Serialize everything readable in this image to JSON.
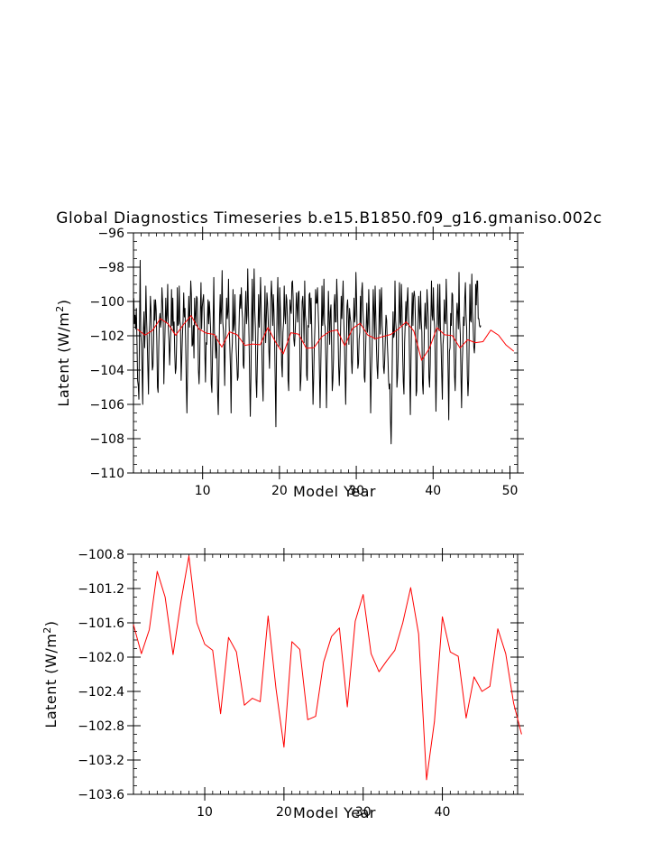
{
  "title": "Global Diagnostics Timeseries b.e15.B1850.f09_g16.gmaniso.002c",
  "colors": {
    "monthly_line": "#000000",
    "annual_line": "#ff0000"
  },
  "chart_data": [
    {
      "type": "line",
      "xlabel": "Model Year",
      "ylabel": "Latent (W/m²)",
      "ylabel_base": "Latent (W/m",
      "ylabel_sup": "2",
      "ylabel_close": ")",
      "xlim": [
        1,
        51
      ],
      "ylim": [
        -110,
        -96
      ],
      "x_ticks": [
        10,
        20,
        30,
        40,
        50
      ],
      "x_tick_labels": [
        "10",
        "20",
        "30",
        "40",
        "50"
      ],
      "y_ticks": [
        -96,
        -98,
        -100,
        -102,
        -104,
        -106,
        -108,
        -110
      ],
      "y_tick_labels": [
        "−96",
        "−98",
        "−100",
        "−102",
        "−104",
        "−106",
        "−108",
        "−110"
      ],
      "grid": false,
      "series": [
        {
          "color": "#000000",
          "x_start": 1.04,
          "x_step": 0.08333,
          "values": [
            -99.8,
            -101.3,
            -100.8,
            -101.6,
            -100.4,
            -102.3,
            -104.6,
            -104.9,
            -105.7,
            -101.5,
            -97.6,
            -101.9,
            -102.5,
            -104.1,
            -106.0,
            -101.6,
            -100.6,
            -102.7,
            -101.4,
            -99.1,
            -101.0,
            -102.2,
            -103.9,
            -105.4,
            -102.1,
            -101.2,
            -99.7,
            -100.6,
            -102.5,
            -104.0,
            -103.8,
            -102.3,
            -99.9,
            -101.1,
            -99.9,
            -100.5,
            -102.3,
            -105.0,
            -105.3,
            -102.7,
            -101.1,
            -100.7,
            -101.5,
            -101.1,
            -99.2,
            -100.0,
            -101.2,
            -104.8,
            -103.1,
            -101.4,
            -99.8,
            -101.2,
            -100.8,
            -99.0,
            -101.6,
            -102.3,
            -103.7,
            -102.5,
            -101.6,
            -99.3,
            -101.4,
            -99.8,
            -101.8,
            -101.2,
            -103.0,
            -104.2,
            -103.9,
            -102.3,
            -99.2,
            -101.4,
            -101.3,
            -99.1,
            -101.1,
            -101.4,
            -104.6,
            -103.3,
            -102.0,
            -101.1,
            -99.5,
            -100.9,
            -100.4,
            -102.2,
            -104.7,
            -106.5,
            -104.1,
            -101.1,
            -99.7,
            -101.5,
            -100.4,
            -98.8,
            -99.6,
            -102.6,
            -102.5,
            -101.4,
            -103.3,
            -99.8,
            -100.7,
            -101.4,
            -99.7,
            -99.8,
            -101.1,
            -104.0,
            -104.8,
            -103.6,
            -100.6,
            -98.9,
            -101.6,
            -100.3,
            -99.9,
            -99.6,
            -101.0,
            -103.0,
            -104.7,
            -102.4,
            -102.5,
            -101.0,
            -99.9,
            -101.3,
            -100.0,
            -100.7,
            -101.6,
            -104.8,
            -105.3,
            -103.2,
            -101.2,
            -98.6,
            -101.8,
            -102.2,
            -103.3,
            -102.0,
            -103.0,
            -105.4,
            -106.6,
            -104.2,
            -100.8,
            -99.6,
            -101.3,
            -100.4,
            -98.2,
            -101.2,
            -101.7,
            -102.7,
            -104.9,
            -102.3,
            -101.3,
            -99.8,
            -101.0,
            -100.6,
            -98.7,
            -101.4,
            -102.6,
            -103.9,
            -106.5,
            -103.1,
            -102.4,
            -99.3,
            -101.7,
            -101.3,
            -99.6,
            -101.6,
            -102.8,
            -103.6,
            -104.6,
            -104.4,
            -102.1,
            -100.5,
            -99.6,
            -100.4,
            -99.2,
            -100.5,
            -101.0,
            -103.7,
            -103.9,
            -102.0,
            -100.6,
            -99.4,
            -101.3,
            -100.8,
            -98.1,
            -100.2,
            -102.1,
            -104.5,
            -106.7,
            -104.5,
            -101.0,
            -98.7,
            -102.3,
            -100.2,
            -98.1,
            -100.5,
            -101.5,
            -104.6,
            -105.6,
            -103.6,
            -101.7,
            -99.6,
            -101.5,
            -100.3,
            -98.6,
            -100.4,
            -102.6,
            -104.7,
            -105.8,
            -102.8,
            -101.0,
            -99.1,
            -102.4,
            -101.1,
            -99.5,
            -100.1,
            -101.1,
            -102.8,
            -103.9,
            -102.0,
            -99.9,
            -98.8,
            -99.8,
            -101.4,
            -99.6,
            -100.6,
            -102.3,
            -104.8,
            -107.3,
            -102.8,
            -100.1,
            -98.6,
            -101.3,
            -102.6,
            -99.2,
            -100.4,
            -101.6,
            -103.7,
            -104.4,
            -101.8,
            -101.2,
            -99.1,
            -100.8,
            -101.3,
            -99.6,
            -99.9,
            -101.0,
            -104.6,
            -105.2,
            -102.0,
            -99.9,
            -100.4,
            -100.7,
            -98.9,
            -98.8,
            -99.9,
            -102.2,
            -102.6,
            -101.9,
            -100.9,
            -99.5,
            -100.3,
            -101.2,
            -99.5,
            -99.4,
            -101.4,
            -105.2,
            -104.6,
            -103.0,
            -100.0,
            -99.7,
            -100.6,
            -102.4,
            -98.8,
            -100.8,
            -101.2,
            -104.3,
            -104.6,
            -101.4,
            -101.5,
            -99.6,
            -99.5,
            -101.3,
            -99.8,
            -101.6,
            -103.8,
            -106.0,
            -104.5,
            -102.6,
            -101.4,
            -99.3,
            -100.1,
            -100.1,
            -99.2,
            -100.5,
            -101.6,
            -104.1,
            -106.2,
            -104.1,
            -101.7,
            -99.1,
            -101.4,
            -100.7,
            -98.7,
            -101.3,
            -101.5,
            -103.5,
            -106.2,
            -103.7,
            -101.8,
            -99.4,
            -100.9,
            -102.5,
            -100.6,
            -100.2,
            -102.6,
            -105.2,
            -104.6,
            -103.3,
            -100.2,
            -99.6,
            -101.2,
            -101.2,
            -98.7,
            -99.9,
            -101.7,
            -103.8,
            -104.9,
            -103.7,
            -101.7,
            -99.7,
            -101.0,
            -99.9,
            -98.8,
            -101.1,
            -102.3,
            -104.2,
            -106.0,
            -103.4,
            -100.3,
            -99.9,
            -100.8,
            -102.5,
            -100.4,
            -100.9,
            -101.2,
            -103.4,
            -104.2,
            -103.0,
            -101.6,
            -99.8,
            -101.2,
            -100.8,
            -98.3,
            -99.8,
            -102.1,
            -103.9,
            -103.6,
            -102.2,
            -101.8,
            -99.7,
            -101.4,
            -99.4,
            -98.9,
            -100.5,
            -101.4,
            -104.4,
            -104.7,
            -103.1,
            -101.5,
            -100.1,
            -101.8,
            -101.3,
            -99.3,
            -100.7,
            -103.4,
            -106.5,
            -104.4,
            -103.2,
            -101.2,
            -99.3,
            -100.6,
            -102.2,
            -99.1,
            -100.7,
            -102.6,
            -103.8,
            -104.5,
            -103.1,
            -101.2,
            -99.3,
            -101.9,
            -100.1,
            -99.2,
            -101.4,
            -102.1,
            -103.8,
            -104.2,
            -103.4,
            -102.0,
            -100.8,
            -101.1,
            -102.4,
            -103.3,
            -104.6,
            -105.1,
            -104.8,
            -106.9,
            -108.3,
            -105.9,
            -102.6,
            -100.6,
            -102.1,
            -101.9,
            -98.8,
            -101.1,
            -101.7,
            -105.0,
            -104.4,
            -103.1,
            -100.7,
            -98.9,
            -101.2,
            -101.4,
            -99.0,
            -100.5,
            -103.1,
            -104.7,
            -105.4,
            -102.4,
            -101.3,
            -100.0,
            -101.4,
            -100.0,
            -99.2,
            -100.7,
            -101.5,
            -104.3,
            -106.6,
            -103.5,
            -101.0,
            -99.5,
            -101.4,
            -99.7,
            -99.4,
            -99.8,
            -101.2,
            -105.5,
            -105.2,
            -102.4,
            -101.4,
            -99.7,
            -100.6,
            -101.6,
            -99.4,
            -101.1,
            -101.8,
            -104.8,
            -105.4,
            -103.6,
            -101.4,
            -100.1,
            -101.4,
            -101.6,
            -99.3,
            -100.1,
            -100.9,
            -104.4,
            -105.0,
            -103.7,
            -101.1,
            -98.8,
            -100.8,
            -101.1,
            -99.2,
            -100.9,
            -101.5,
            -103.8,
            -106.4,
            -104.0,
            -100.5,
            -99.0,
            -101.3,
            -101.7,
            -99.0,
            -101.5,
            -102.6,
            -104.3,
            -105.7,
            -102.5,
            -102.0,
            -99.9,
            -101.1,
            -101.3,
            -98.7,
            -100.3,
            -102.0,
            -104.3,
            -106.9,
            -102.9,
            -102.7,
            -100.7,
            -101.4,
            -99.5,
            -99.6,
            -101.5,
            -102.3,
            -104.3,
            -105.2,
            -103.6,
            -101.1,
            -100.1,
            -100.7,
            -101.6,
            -98.3,
            -101.1,
            -101.9,
            -104.3,
            -106.2,
            -103.7,
            -102.6,
            -100.9,
            -101.4,
            -99.8,
            -98.9,
            -100.8,
            -101.6,
            -104.3,
            -105.5,
            -104.6,
            -101.8,
            -99.0,
            -101.1,
            -101.2,
            -98.4,
            -100.6,
            -101.3,
            -102.6,
            -103.0,
            -102.3,
            -99.0,
            -100.2,
            -98.8,
            -98.8,
            -101.0,
            -101.0,
            -101.4,
            -101.5,
            -101.4
          ]
        },
        {
          "color": "#ff0000",
          "x": [
            1.5,
            2.5,
            3.5,
            4.5,
            5.5,
            6.5,
            7.5,
            8.5,
            9.5,
            10.5,
            11.5,
            12.5,
            13.5,
            14.5,
            15.5,
            16.5,
            17.5,
            18.5,
            19.5,
            20.5,
            21.5,
            22.5,
            23.5,
            24.5,
            25.5,
            26.5,
            27.5,
            28.5,
            29.5,
            30.5,
            31.5,
            32.5,
            33.5,
            34.5,
            35.5,
            36.5,
            37.5,
            38.5,
            39.5,
            40.5,
            41.5,
            42.5,
            43.5,
            44.5,
            45.5,
            46.5,
            47.5,
            48.5,
            49.5,
            50.5
          ],
          "values": [
            -101.62,
            -101.96,
            -101.68,
            -101.0,
            -101.3,
            -101.97,
            -101.35,
            -100.82,
            -101.6,
            -101.85,
            -101.92,
            -102.66,
            -101.77,
            -101.94,
            -102.56,
            -102.48,
            -102.52,
            -101.52,
            -102.37,
            -103.05,
            -101.82,
            -101.91,
            -102.73,
            -102.69,
            -102.06,
            -101.76,
            -101.66,
            -102.58,
            -101.58,
            -101.27,
            -101.96,
            -102.17,
            -102.04,
            -101.92,
            -101.6,
            -101.19,
            -101.73,
            -103.43,
            -102.75,
            -101.53,
            -101.94,
            -101.99,
            -102.71,
            -102.23,
            -102.4,
            -102.34,
            -101.67,
            -101.96,
            -102.54,
            -102.9
          ]
        }
      ]
    },
    {
      "type": "line",
      "xlabel": "Model Year",
      "ylabel": "Latent (W/m²)",
      "ylabel_base": "Latent (W/m",
      "ylabel_sup": "2",
      "ylabel_close": ")",
      "xlim": [
        1,
        49.5
      ],
      "ylim": [
        -103.6,
        -100.8
      ],
      "x_ticks": [
        10,
        20,
        30,
        40
      ],
      "x_tick_labels": [
        "10",
        "20",
        "30",
        "40"
      ],
      "y_ticks": [
        -100.8,
        -101.2,
        -101.6,
        -102.0,
        -102.4,
        -102.8,
        -103.2,
        -103.6
      ],
      "y_tick_labels": [
        "−100.8",
        "−101.2",
        "−101.6",
        "−102.0",
        "−102.4",
        "−102.8",
        "−103.2",
        "−103.6"
      ],
      "grid": false,
      "series": [
        {
          "color": "#ff0000",
          "x": [
            1,
            2,
            3,
            4,
            5,
            6,
            7,
            8,
            9,
            10,
            11,
            12,
            13,
            14,
            15,
            16,
            17,
            18,
            19,
            20,
            21,
            22,
            23,
            24,
            25,
            26,
            27,
            28,
            29,
            30,
            31,
            32,
            33,
            34,
            35,
            36,
            37,
            38,
            39,
            40,
            41,
            42,
            43,
            44,
            45,
            46,
            47,
            48,
            49,
            50
          ],
          "values": [
            -101.62,
            -101.96,
            -101.68,
            -101.0,
            -101.3,
            -101.97,
            -101.35,
            -100.82,
            -101.6,
            -101.85,
            -101.92,
            -102.66,
            -101.77,
            -101.94,
            -102.56,
            -102.48,
            -102.52,
            -101.52,
            -102.37,
            -103.05,
            -101.82,
            -101.91,
            -102.73,
            -102.69,
            -102.06,
            -101.76,
            -101.66,
            -102.58,
            -101.58,
            -101.27,
            -101.96,
            -102.17,
            -102.04,
            -101.92,
            -101.6,
            -101.19,
            -101.73,
            -103.43,
            -102.75,
            -101.53,
            -101.94,
            -101.99,
            -102.71,
            -102.23,
            -102.4,
            -102.34,
            -101.67,
            -101.96,
            -102.54,
            -102.9
          ]
        }
      ]
    }
  ]
}
